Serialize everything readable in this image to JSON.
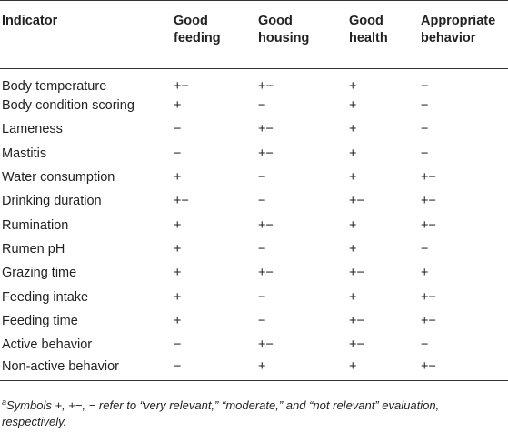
{
  "table": {
    "headers": [
      [
        "Indicator",
        ""
      ],
      [
        "Good",
        "feeding"
      ],
      [
        "Good",
        "housing"
      ],
      [
        "Good",
        "health"
      ],
      [
        "Appropriate",
        "behavior"
      ]
    ],
    "rows": [
      [
        "Body temperature",
        "+−",
        "+−",
        "+",
        "−"
      ],
      [
        "Body condition scoring",
        "+",
        "−",
        "+",
        "−"
      ],
      [
        "Lameness",
        "−",
        "+−",
        "+",
        "−"
      ],
      [
        "Mastitis",
        "−",
        "+−",
        "+",
        "−"
      ],
      [
        "Water consumption",
        "+",
        "−",
        "+",
        "+−"
      ],
      [
        "Drinking duration",
        "+−",
        "−",
        "+−",
        "+−"
      ],
      [
        "Rumination",
        "+",
        "+−",
        "+",
        "+−"
      ],
      [
        "Rumen pH",
        "+",
        "−",
        "+",
        "−"
      ],
      [
        "Grazing time",
        "+",
        "+−",
        "+−",
        "+"
      ],
      [
        "Feeding intake",
        "+",
        "−",
        "+",
        "+−"
      ],
      [
        "Feeding time",
        "+",
        "−",
        "+−",
        "+−"
      ],
      [
        "Active behavior",
        "−",
        "+−",
        "+−",
        "−"
      ],
      [
        "Non-active behavior",
        "−",
        "+",
        "+",
        "+−"
      ]
    ]
  },
  "footnote": {
    "marker": "a",
    "text": "Symbols +, +−, − refer to “very relevant,” “moderate,” and “not relevant” evaluation, respectively."
  }
}
